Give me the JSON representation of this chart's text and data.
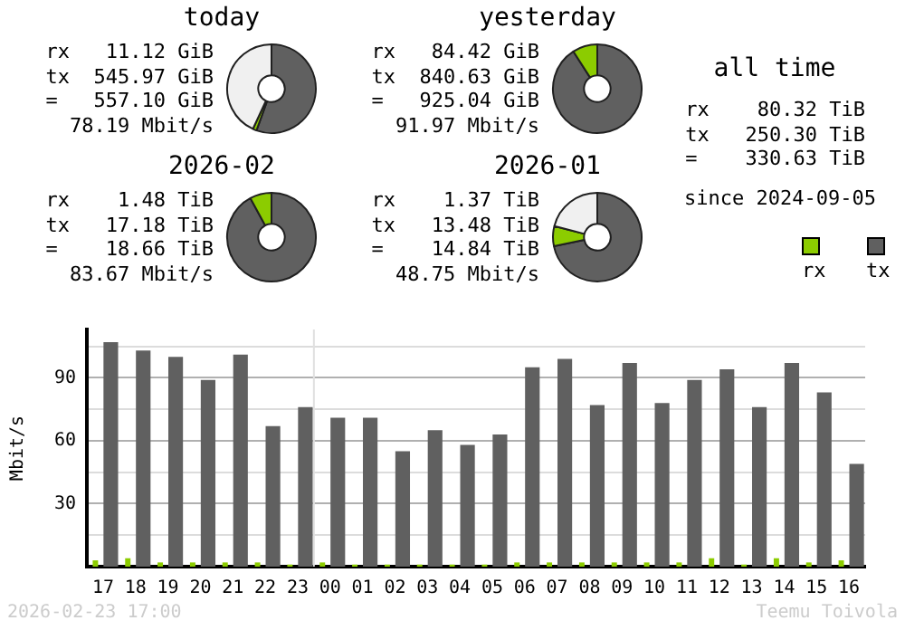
{
  "chart_data": [
    {
      "type": "donut",
      "title": "today",
      "categories": [
        null,
        null,
        null
      ],
      "values": [
        55.5,
        1.4,
        43.1
      ],
      "colors": [
        "#606060",
        "#8ccc00",
        "#f0f0f0"
      ],
      "annotations": [
        "rx   11.12 GiB",
        "tx  545.97 GiB",
        "=   557.10 GiB",
        "78.19 Mbit/s"
      ]
    },
    {
      "type": "donut",
      "title": "yesterday",
      "categories": [
        null,
        null
      ],
      "values": [
        90.9,
        9.1
      ],
      "colors": [
        "#606060",
        "#8ccc00"
      ],
      "annotations": [
        "rx   84.42 GiB",
        "tx  840.63 GiB",
        "=   925.04 GiB",
        "91.97 Mbit/s"
      ]
    },
    {
      "type": "other",
      "title": "all time",
      "annotations": [
        "rx    80.32 TiB",
        "tx   250.30 TiB",
        "=    330.63 TiB",
        "since 2024-09-05"
      ]
    },
    {
      "type": "donut",
      "title": "2026-02",
      "categories": [
        null,
        null
      ],
      "values": [
        92.1,
        7.9
      ],
      "colors": [
        "#606060",
        "#8ccc00"
      ],
      "annotations": [
        "rx    1.48 TiB",
        "tx   17.18 TiB",
        "=    18.66 TiB",
        "83.67 Mbit/s"
      ]
    },
    {
      "type": "donut",
      "title": "2026-01",
      "categories": [
        null,
        null,
        null
      ],
      "values": [
        71.7,
        7.3,
        21
      ],
      "colors": [
        "#606060",
        "#8ccc00",
        "#f0f0f0"
      ],
      "annotations": [
        "rx    1.37 TiB",
        "tx   13.48 TiB",
        "=    14.84 TiB",
        "48.75 Mbit/s"
      ]
    },
    {
      "type": "bar",
      "ylabel": "Mbit/s",
      "categories": [
        "17",
        "18",
        "19",
        "20",
        "21",
        "22",
        "23",
        "00",
        "01",
        "02",
        "03",
        "04",
        "05",
        "06",
        "07",
        "08",
        "09",
        "10",
        "11",
        "12",
        "13",
        "14",
        "15",
        "16"
      ],
      "series": [
        {
          "name": "rx",
          "color": "#8ccc00",
          "values": [
            3,
            4,
            2,
            2,
            2,
            2,
            1,
            2,
            1,
            1,
            1,
            1,
            1,
            2,
            2,
            2,
            2,
            2,
            2,
            4,
            1,
            4,
            2,
            3
          ]
        },
        {
          "name": "tx",
          "color": "#606060",
          "values": [
            107,
            103,
            100,
            89,
            101,
            67,
            76,
            71,
            71,
            55,
            65,
            58,
            63,
            95,
            99,
            77,
            97,
            78,
            89,
            94,
            76,
            97,
            83,
            49
          ]
        }
      ],
      "ylim": [
        0,
        113
      ],
      "yticks": [
        {
          "value": 15,
          "label": null
        },
        30,
        {
          "value": 45,
          "label": null
        },
        60,
        {
          "value": 75,
          "label": null
        },
        90,
        {
          "value": 105,
          "label": null
        }
      ],
      "grid": "y",
      "legend": "top right",
      "ref_lines": [
        {
          "axis": "x",
          "value": "00",
          "color": "#e0e0e0"
        }
      ],
      "annotations": [
        "2026-02-23 17:00",
        "Teemu Toivola"
      ]
    }
  ]
}
